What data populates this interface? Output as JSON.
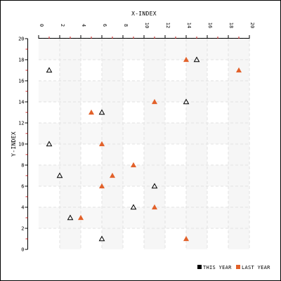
{
  "chart_data": {
    "type": "scatter",
    "title": "",
    "xlabel": "X-INDEX",
    "ylabel": "Y-INDEX",
    "xlim": [
      0,
      20
    ],
    "ylim": [
      0,
      20
    ],
    "x_ticks": [
      0,
      2,
      4,
      6,
      8,
      10,
      12,
      14,
      16,
      18,
      20
    ],
    "y_ticks": [
      0,
      2,
      4,
      6,
      8,
      10,
      12,
      14,
      16,
      18,
      20
    ],
    "x_axis_position": "top",
    "grid": true,
    "legend_position": "bottom-right",
    "series": [
      {
        "name": "THIS YEAR",
        "marker": "hollow-triangle",
        "color": "#000000",
        "points": [
          [
            1,
            17
          ],
          [
            15,
            18
          ],
          [
            6,
            13
          ],
          [
            14,
            14
          ],
          [
            1,
            10
          ],
          [
            2,
            7
          ],
          [
            11,
            6
          ],
          [
            9,
            4
          ],
          [
            3,
            3
          ],
          [
            6,
            1
          ]
        ]
      },
      {
        "name": "LAST YEAR",
        "marker": "filled-triangle",
        "color": "#e2612a",
        "points": [
          [
            14,
            18
          ],
          [
            19,
            17
          ],
          [
            5,
            13
          ],
          [
            11,
            14
          ],
          [
            6,
            10
          ],
          [
            9,
            8
          ],
          [
            7,
            7
          ],
          [
            6,
            6
          ],
          [
            11,
            4
          ],
          [
            4,
            3
          ],
          [
            14,
            1
          ]
        ]
      }
    ]
  },
  "colors": {
    "minor_tick": "#cc2222",
    "band_shade": "#f6f6f6",
    "grid": "#e2e2e2"
  }
}
